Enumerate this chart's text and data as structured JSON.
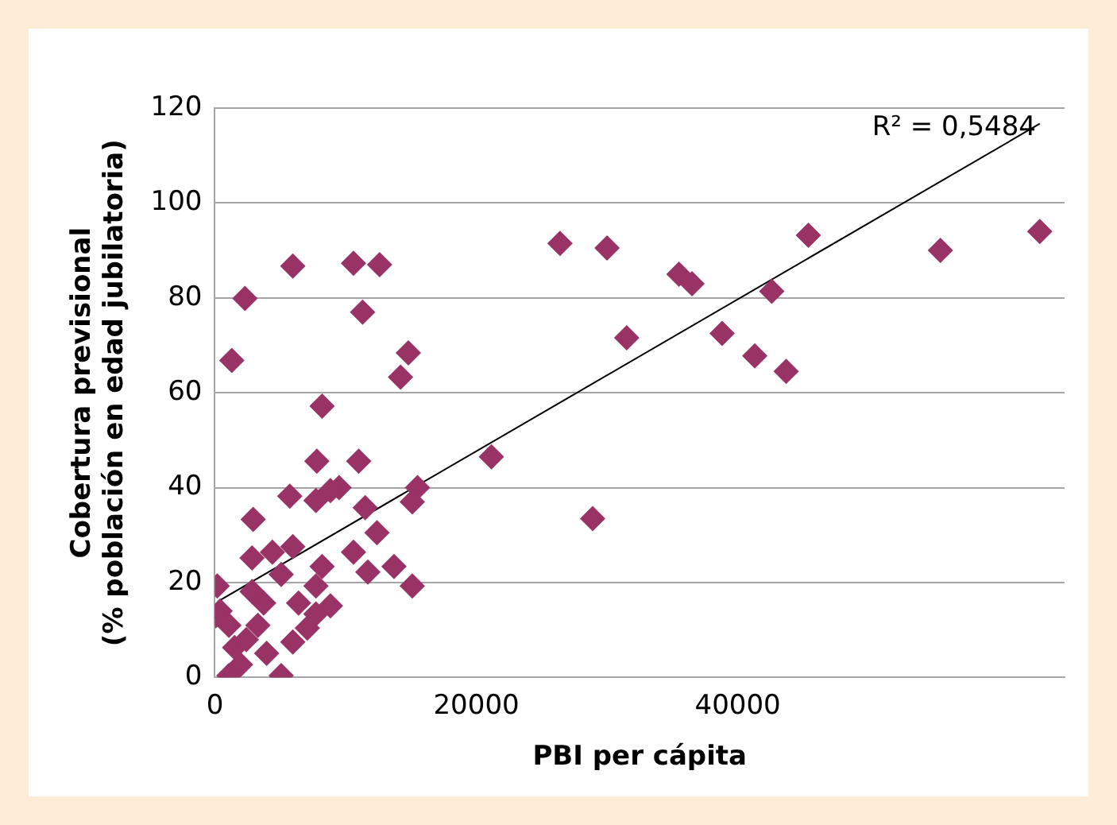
{
  "chart_data": {
    "type": "scatter",
    "xlabel": "PBI per cápita",
    "ylabel": "Cobertura previsional\n(% población en edad jubilatoria)",
    "xlim": [
      0,
      65000
    ],
    "xticks": [
      0,
      20000,
      40000
    ],
    "ylim": [
      0,
      120
    ],
    "yticks": [
      0,
      20,
      40,
      60,
      80,
      100,
      120
    ],
    "grid": "y",
    "legend": false,
    "annotations": [
      "R² = 0,5484"
    ],
    "series": [
      {
        "color": "#993366",
        "marker": "diamond",
        "x": [
          26400,
          30000,
          35500,
          36500,
          45400,
          55500,
          63100,
          42600,
          31500,
          38800,
          41300,
          43700,
          21150,
          28900,
          5960,
          2300,
          1290,
          10600,
          12600,
          11300,
          14800,
          14200,
          8200,
          7800,
          11000,
          5730,
          7730,
          9500,
          8840,
          15500,
          15100,
          2930,
          11500,
          12400,
          10600,
          11700,
          13700,
          15100,
          8200,
          5960,
          4400,
          2840,
          8840,
          7070,
          5070,
          1070,
          400,
          180,
          1510,
          3290,
          5070,
          6400,
          2400,
          3960,
          1960,
          1070,
          5960,
          3730,
          7730,
          70,
          2840,
          7730
        ],
        "values": [
          91.5,
          90.5,
          85,
          83,
          93.2,
          90,
          94,
          81.4,
          71.6,
          72.5,
          67.8,
          64.5,
          46.5,
          33.5,
          86.7,
          79.9,
          66.8,
          87.3,
          87,
          77,
          68.4,
          63.3,
          57.2,
          45.6,
          45.6,
          38.2,
          37.3,
          40,
          39.4,
          40,
          37,
          33.3,
          35.8,
          30.5,
          26.4,
          22.2,
          23.4,
          19.3,
          23.4,
          27.6,
          26.4,
          25.2,
          15.1,
          10.4,
          0.4,
          0.4,
          14,
          19.3,
          6.3,
          11,
          21.7,
          15.7,
          8,
          5.1,
          2.7,
          11,
          7.5,
          15.7,
          13.4,
          13,
          18.1,
          19.3
        ]
      },
      {
        "type": "line",
        "color": "#000000",
        "marker": "none",
        "x": [
          400,
          63100
        ],
        "values": [
          16.3,
          116.7
        ]
      }
    ]
  }
}
